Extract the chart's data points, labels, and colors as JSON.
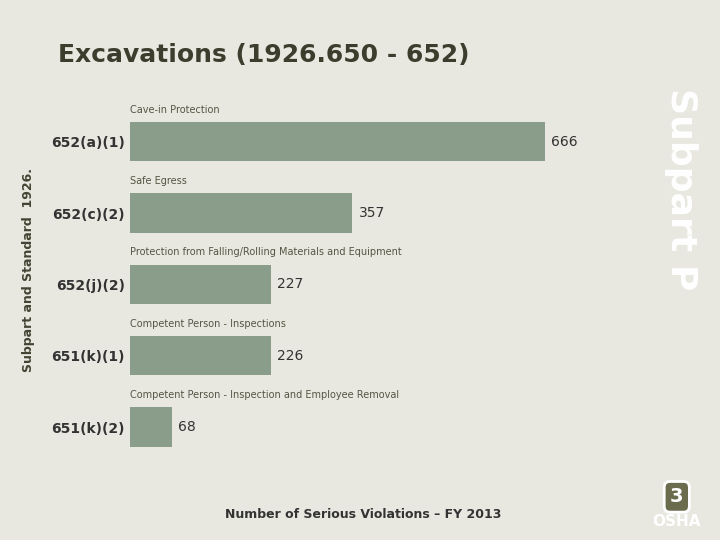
{
  "title": "Excavations (1926.650 - 652)",
  "ylabel_rotated": "Subpart and Standard  1926.",
  "xlabel": "Number of Serious Violations – FY 2013",
  "categories": [
    "652(a)(1)",
    "652(c)(2)",
    "652(j)(2)",
    "651(k)(1)",
    "651(k)(2)"
  ],
  "values": [
    666,
    357,
    227,
    226,
    68
  ],
  "descriptions": [
    "Cave-in Protection",
    "Safe Egress",
    "Protection from Falling/Rolling Materials and Equipment",
    "Competent Person - Inspections",
    "Competent Person - Inspection and Employee Removal"
  ],
  "bar_color": "#8a9d8a",
  "background_color": "#e8e8e0",
  "right_panel_color": "#6b6b4e",
  "right_panel_text": "Subpart P",
  "page_number": "3",
  "title_color": "#3d3d2e",
  "bar_label_color": "#333333",
  "desc_color": "#555544",
  "xlabel_color": "#333333",
  "ylabel_color": "#444433",
  "xlim": [
    0,
    750
  ]
}
